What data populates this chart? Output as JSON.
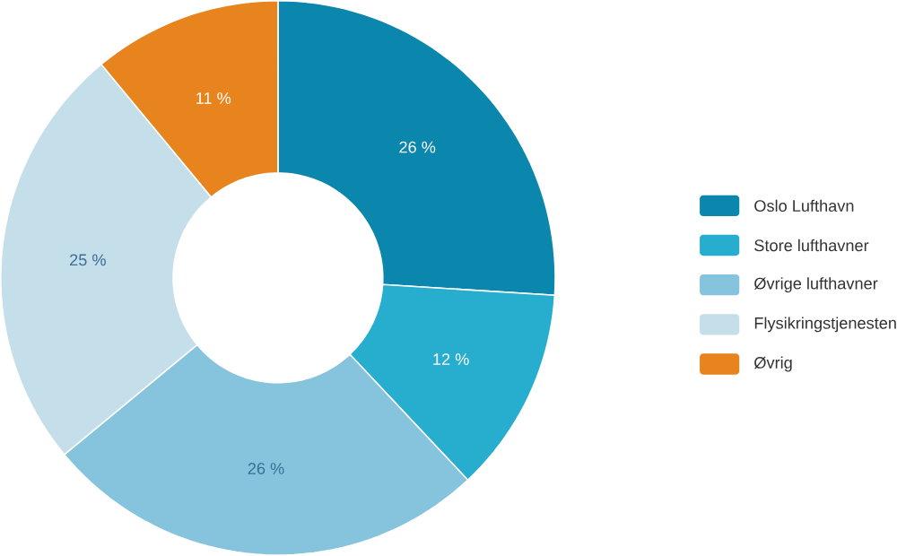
{
  "chart_data": {
    "type": "donut",
    "categories": [
      "Oslo Lufthavn",
      "Store lufthavner",
      "Øvrige lufthavner",
      "Flysikringstjenesten",
      "Øvrig"
    ],
    "values": [
      26,
      12,
      26,
      25,
      11
    ],
    "colors": [
      "#0b86ad",
      "#27aecf",
      "#86c3dc",
      "#c4deea",
      "#e8841e"
    ],
    "value_labels": [
      "26 %",
      "12 %",
      "26 %",
      "25 %",
      "11 %"
    ],
    "legend": "right"
  }
}
